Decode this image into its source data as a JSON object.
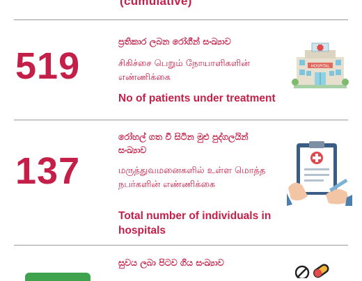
{
  "header": {
    "caption": "(cumulative)"
  },
  "sections": [
    {
      "number": "519",
      "sinhala": "ප්‍රතිකාර ලබන රෝගීන් සංඛ්‍යාව",
      "tamil": "சிகிச்சை பெறும் நோயாளிகளின் எண்ணிக்கை",
      "english": "No of patients under treatment",
      "icon": "hospital-icon"
    },
    {
      "number": "137",
      "sinhala": "රෝහල් ගත වී සිටින මුළු පුද්ගලයින් සංඛ්‍යාව",
      "tamil": "மருத்துவமனைகளில் உள்ள மொத்த நபர்களின் எண்ணிக்கை",
      "english": "Total number of individuals in hospitals",
      "icon": "medical-report-icon"
    },
    {
      "number": "",
      "sinhala": "සුවය ලබා පිටව ගිය සංඛ්‍යාව",
      "icon": "pills-icon"
    }
  ],
  "colors": {
    "accent": "#c41f48",
    "divider": "#9a9a9a"
  }
}
